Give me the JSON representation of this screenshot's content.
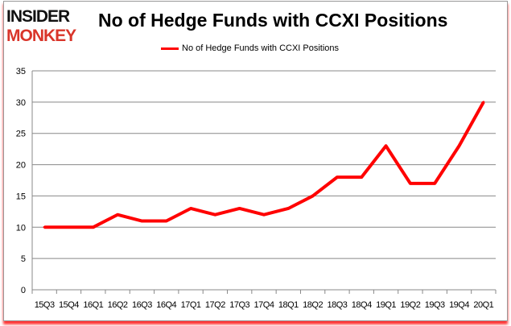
{
  "logo": {
    "line1": "INSIDER",
    "line2": "MONKEY"
  },
  "chart_data": {
    "type": "line",
    "title": "No of Hedge Funds with CCXI Positions",
    "categories": [
      "15Q3",
      "15Q4",
      "16Q1",
      "16Q2",
      "16Q3",
      "16Q4",
      "17Q1",
      "17Q2",
      "17Q3",
      "17Q4",
      "18Q1",
      "18Q2",
      "18Q3",
      "18Q4",
      "19Q1",
      "19Q2",
      "19Q3",
      "19Q4",
      "20Q1"
    ],
    "series": [
      {
        "name": "No of Hedge Funds with CCXI Positions",
        "color": "#ff0000",
        "values": [
          10,
          10,
          10,
          12,
          11,
          11,
          13,
          12,
          13,
          12,
          13,
          15,
          18,
          18,
          23,
          17,
          17,
          23,
          30
        ]
      }
    ],
    "ylim": [
      0,
      35
    ],
    "yticks": [
      0,
      5,
      10,
      15,
      20,
      25,
      30,
      35
    ],
    "grid": true,
    "legend": "top"
  }
}
